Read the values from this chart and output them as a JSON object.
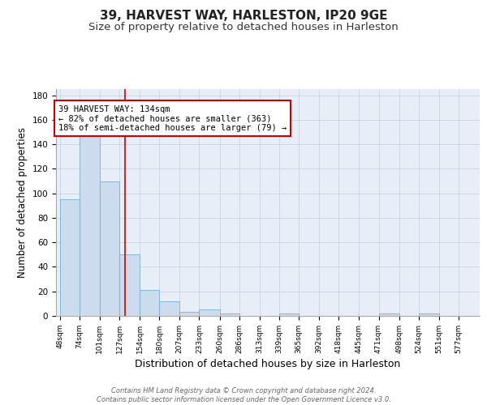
{
  "title": "39, HARVEST WAY, HARLESTON, IP20 9GE",
  "subtitle": "Size of property relative to detached houses in Harleston",
  "xlabel": "Distribution of detached houses by size in Harleston",
  "ylabel": "Number of detached properties",
  "bin_edges": [
    48,
    74,
    101,
    127,
    154,
    180,
    207,
    233,
    260,
    286,
    313,
    339,
    365,
    392,
    418,
    445,
    471,
    498,
    524,
    551,
    577
  ],
  "bar_heights": [
    95,
    150,
    110,
    50,
    21,
    12,
    3,
    5,
    2,
    0,
    0,
    2,
    0,
    0,
    0,
    0,
    2,
    0,
    2,
    0
  ],
  "bar_color": "#ccdcee",
  "bar_edge_color": "#7aaed0",
  "grid_color": "#c8d4e4",
  "background_color": "#e8eef8",
  "property_size": 134,
  "vline_color": "#cc0000",
  "annotation_text": "39 HARVEST WAY: 134sqm\n← 82% of detached houses are smaller (363)\n18% of semi-detached houses are larger (79) →",
  "annotation_box_color": "#ffffff",
  "annotation_box_edge": "#cc0000",
  "ylim": [
    0,
    185
  ],
  "yticks": [
    0,
    20,
    40,
    60,
    80,
    100,
    120,
    140,
    160,
    180
  ],
  "footer_text": "Contains HM Land Registry data © Crown copyright and database right 2024.\nContains public sector information licensed under the Open Government Licence v3.0.",
  "title_fontsize": 11,
  "subtitle_fontsize": 9.5,
  "xlabel_fontsize": 9,
  "ylabel_fontsize": 8.5
}
